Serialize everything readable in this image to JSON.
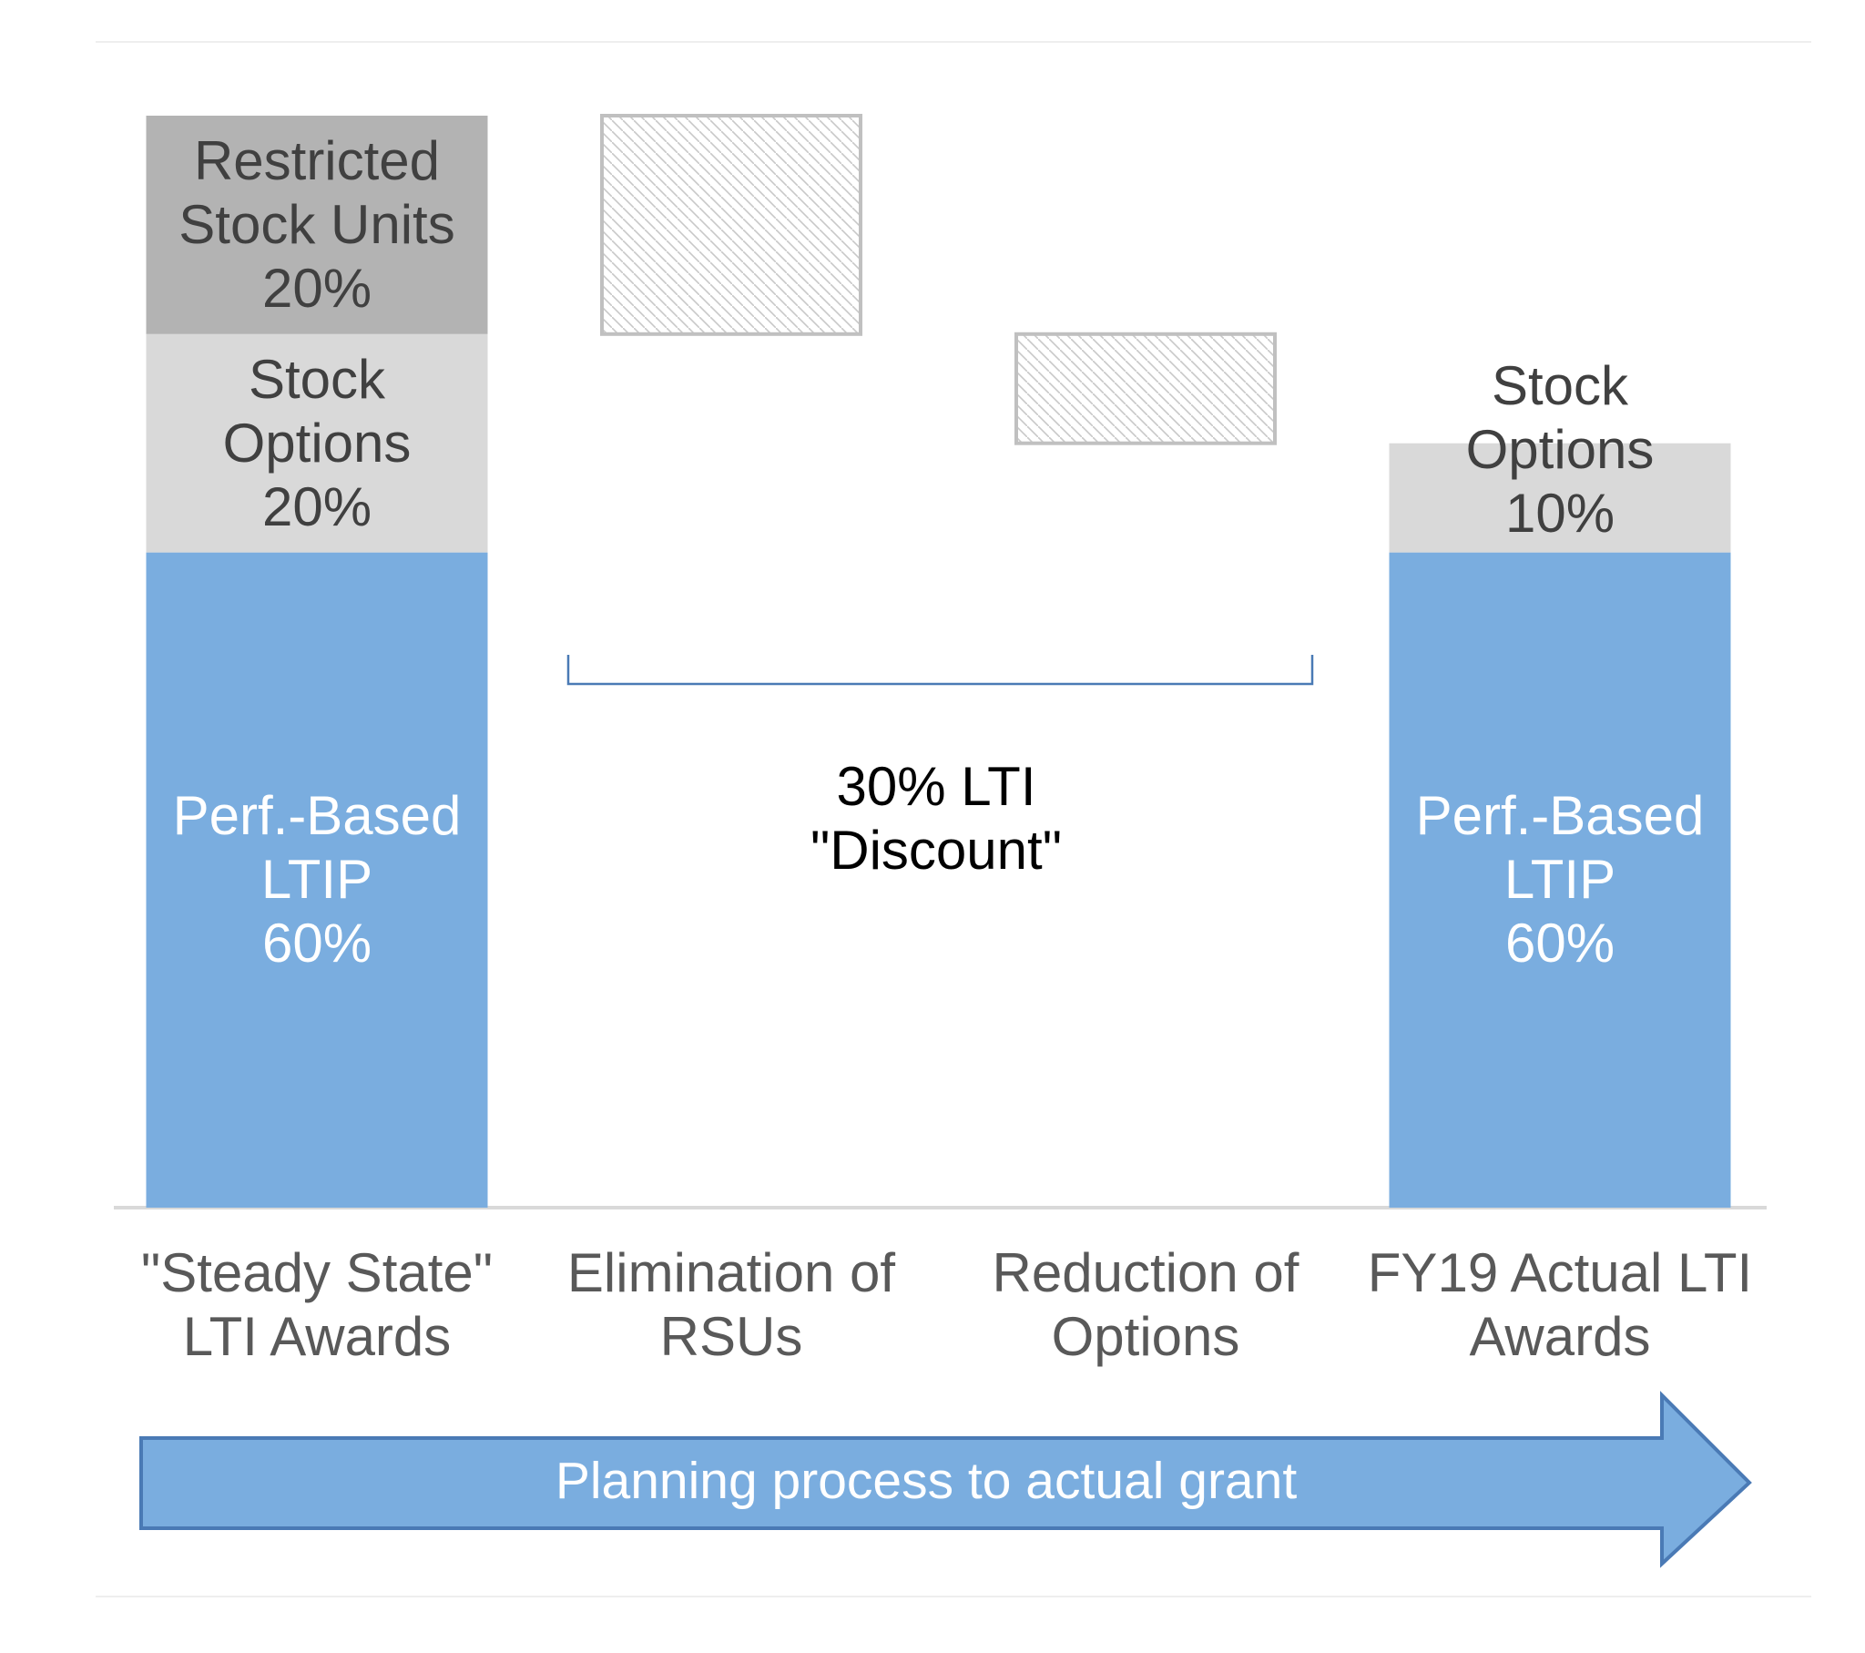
{
  "chart_data": {
    "type": "waterfall",
    "categories": [
      "\"Steady State\" LTI Awards",
      "Elimination of RSUs",
      "Reduction of Options",
      "FY19 Actual LTI Awards"
    ],
    "series": [
      {
        "name": "Perf.-Based LTIP",
        "color": "#7aaddf",
        "values": [
          60,
          null,
          null,
          60
        ],
        "value_labels": [
          "60%",
          null,
          null,
          "60%"
        ]
      },
      {
        "name": "Stock Options",
        "color": "#d9d9d9",
        "values": [
          20,
          null,
          -10,
          10
        ],
        "value_labels": [
          "20%",
          null,
          null,
          "10%"
        ]
      },
      {
        "name": "Restricted Stock Units",
        "color": "#b3b3b3",
        "values": [
          20,
          -20,
          null,
          null
        ],
        "value_labels": [
          "20%",
          null,
          null,
          null
        ]
      }
    ],
    "ylim": [
      0,
      100
    ],
    "annotations": [
      "30% LTI \"Discount\"",
      "Planning process to actual grant"
    ]
  }
}
